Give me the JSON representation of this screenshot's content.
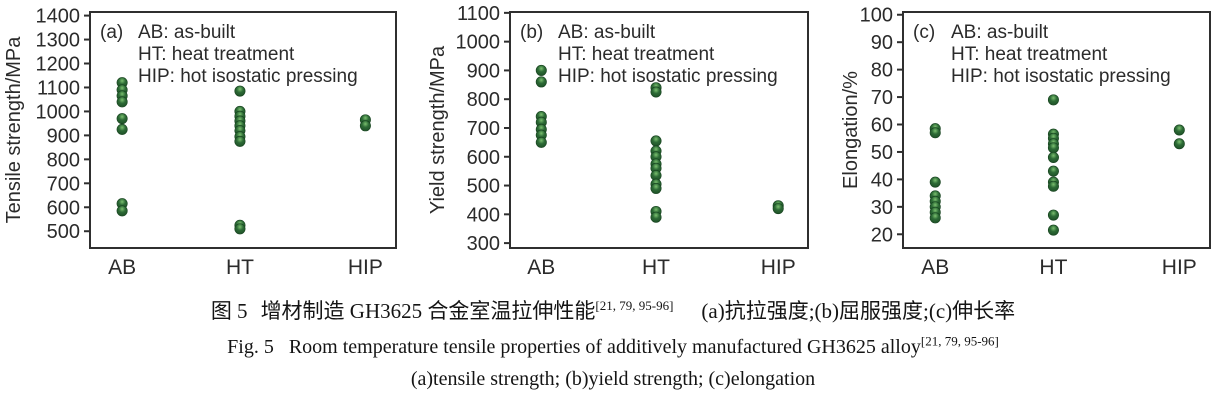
{
  "colors": {
    "marker_base": "#2d6b36",
    "marker_highlight": "#7bc06f",
    "marker_dark": "#1d4f26",
    "axis": "#2f2f2f",
    "text": "#2b2b2b"
  },
  "caption": {
    "zh_label": "图 5",
    "zh_title": "增材制造 GH3625 合金室温拉伸性能",
    "ref": "[21, 79, 95-96]",
    "zh_parts": "(a)抗拉强度;(b)屈服强度;(c)伸长率",
    "en_label": "Fig. 5",
    "en_title": "Room temperature tensile properties of additively manufactured GH3625 alloy",
    "en_parts": "(a)tensile strength; (b)yield strength; (c)elongation"
  },
  "chart_data": [
    {
      "type": "scatter",
      "panel": "(a)",
      "ylabel": "Tensile strength/MPa",
      "categories": [
        "AB",
        "HT",
        "HIP"
      ],
      "ylim": [
        430,
        1415
      ],
      "yticks": [
        500,
        600,
        700,
        800,
        900,
        1000,
        1100,
        1200,
        1300,
        1400
      ],
      "grid": false,
      "legend_position": "top-left-inside",
      "legend": [
        "AB: as-built",
        "HT: heat treatment",
        "HIP: hot isostatic pressing"
      ],
      "series": [
        {
          "name": "AB",
          "values": [
            1120,
            1090,
            1065,
            1040,
            970,
            925,
            615,
            585
          ]
        },
        {
          "name": "HT",
          "values": [
            1085,
            1000,
            980,
            960,
            940,
            920,
            895,
            875,
            525,
            510
          ]
        },
        {
          "name": "HIP",
          "values": [
            965,
            940
          ]
        }
      ]
    },
    {
      "type": "scatter",
      "panel": "(b)",
      "ylabel": "Yield strength/MPa",
      "categories": [
        "AB",
        "HT",
        "HIP"
      ],
      "ylim": [
        283,
        1103
      ],
      "yticks": [
        300,
        400,
        500,
        600,
        700,
        800,
        900,
        1000,
        1100
      ],
      "grid": false,
      "legend_position": "top-left-inside",
      "legend": [
        "AB: as-built",
        "HT: heat treatment",
        "HIP: hot isostatic pressing"
      ],
      "series": [
        {
          "name": "AB",
          "values": [
            900,
            860,
            740,
            720,
            695,
            675,
            650
          ]
        },
        {
          "name": "HT",
          "values": [
            840,
            825,
            655,
            620,
            600,
            575,
            560,
            535,
            505,
            490,
            410,
            390
          ]
        },
        {
          "name": "HIP",
          "values": [
            430,
            420
          ]
        }
      ]
    },
    {
      "type": "scatter",
      "panel": "(c)",
      "ylabel": "Elongation/%",
      "categories": [
        "AB",
        "HT",
        "HIP"
      ],
      "ylim": [
        15,
        101
      ],
      "yticks": [
        20,
        30,
        40,
        50,
        60,
        70,
        80,
        90,
        100
      ],
      "grid": false,
      "legend_position": "top-left-inside",
      "legend": [
        "AB: as-built",
        "HT: heat treatment",
        "HIP: hot isostatic pressing"
      ],
      "series": [
        {
          "name": "AB",
          "values": [
            58.5,
            57,
            39,
            34,
            32,
            30,
            28,
            26
          ]
        },
        {
          "name": "HT",
          "values": [
            69,
            56.5,
            55,
            53,
            51.5,
            48,
            43,
            39,
            37.5,
            27,
            21.5
          ]
        },
        {
          "name": "HIP",
          "values": [
            58,
            53
          ]
        }
      ]
    }
  ]
}
